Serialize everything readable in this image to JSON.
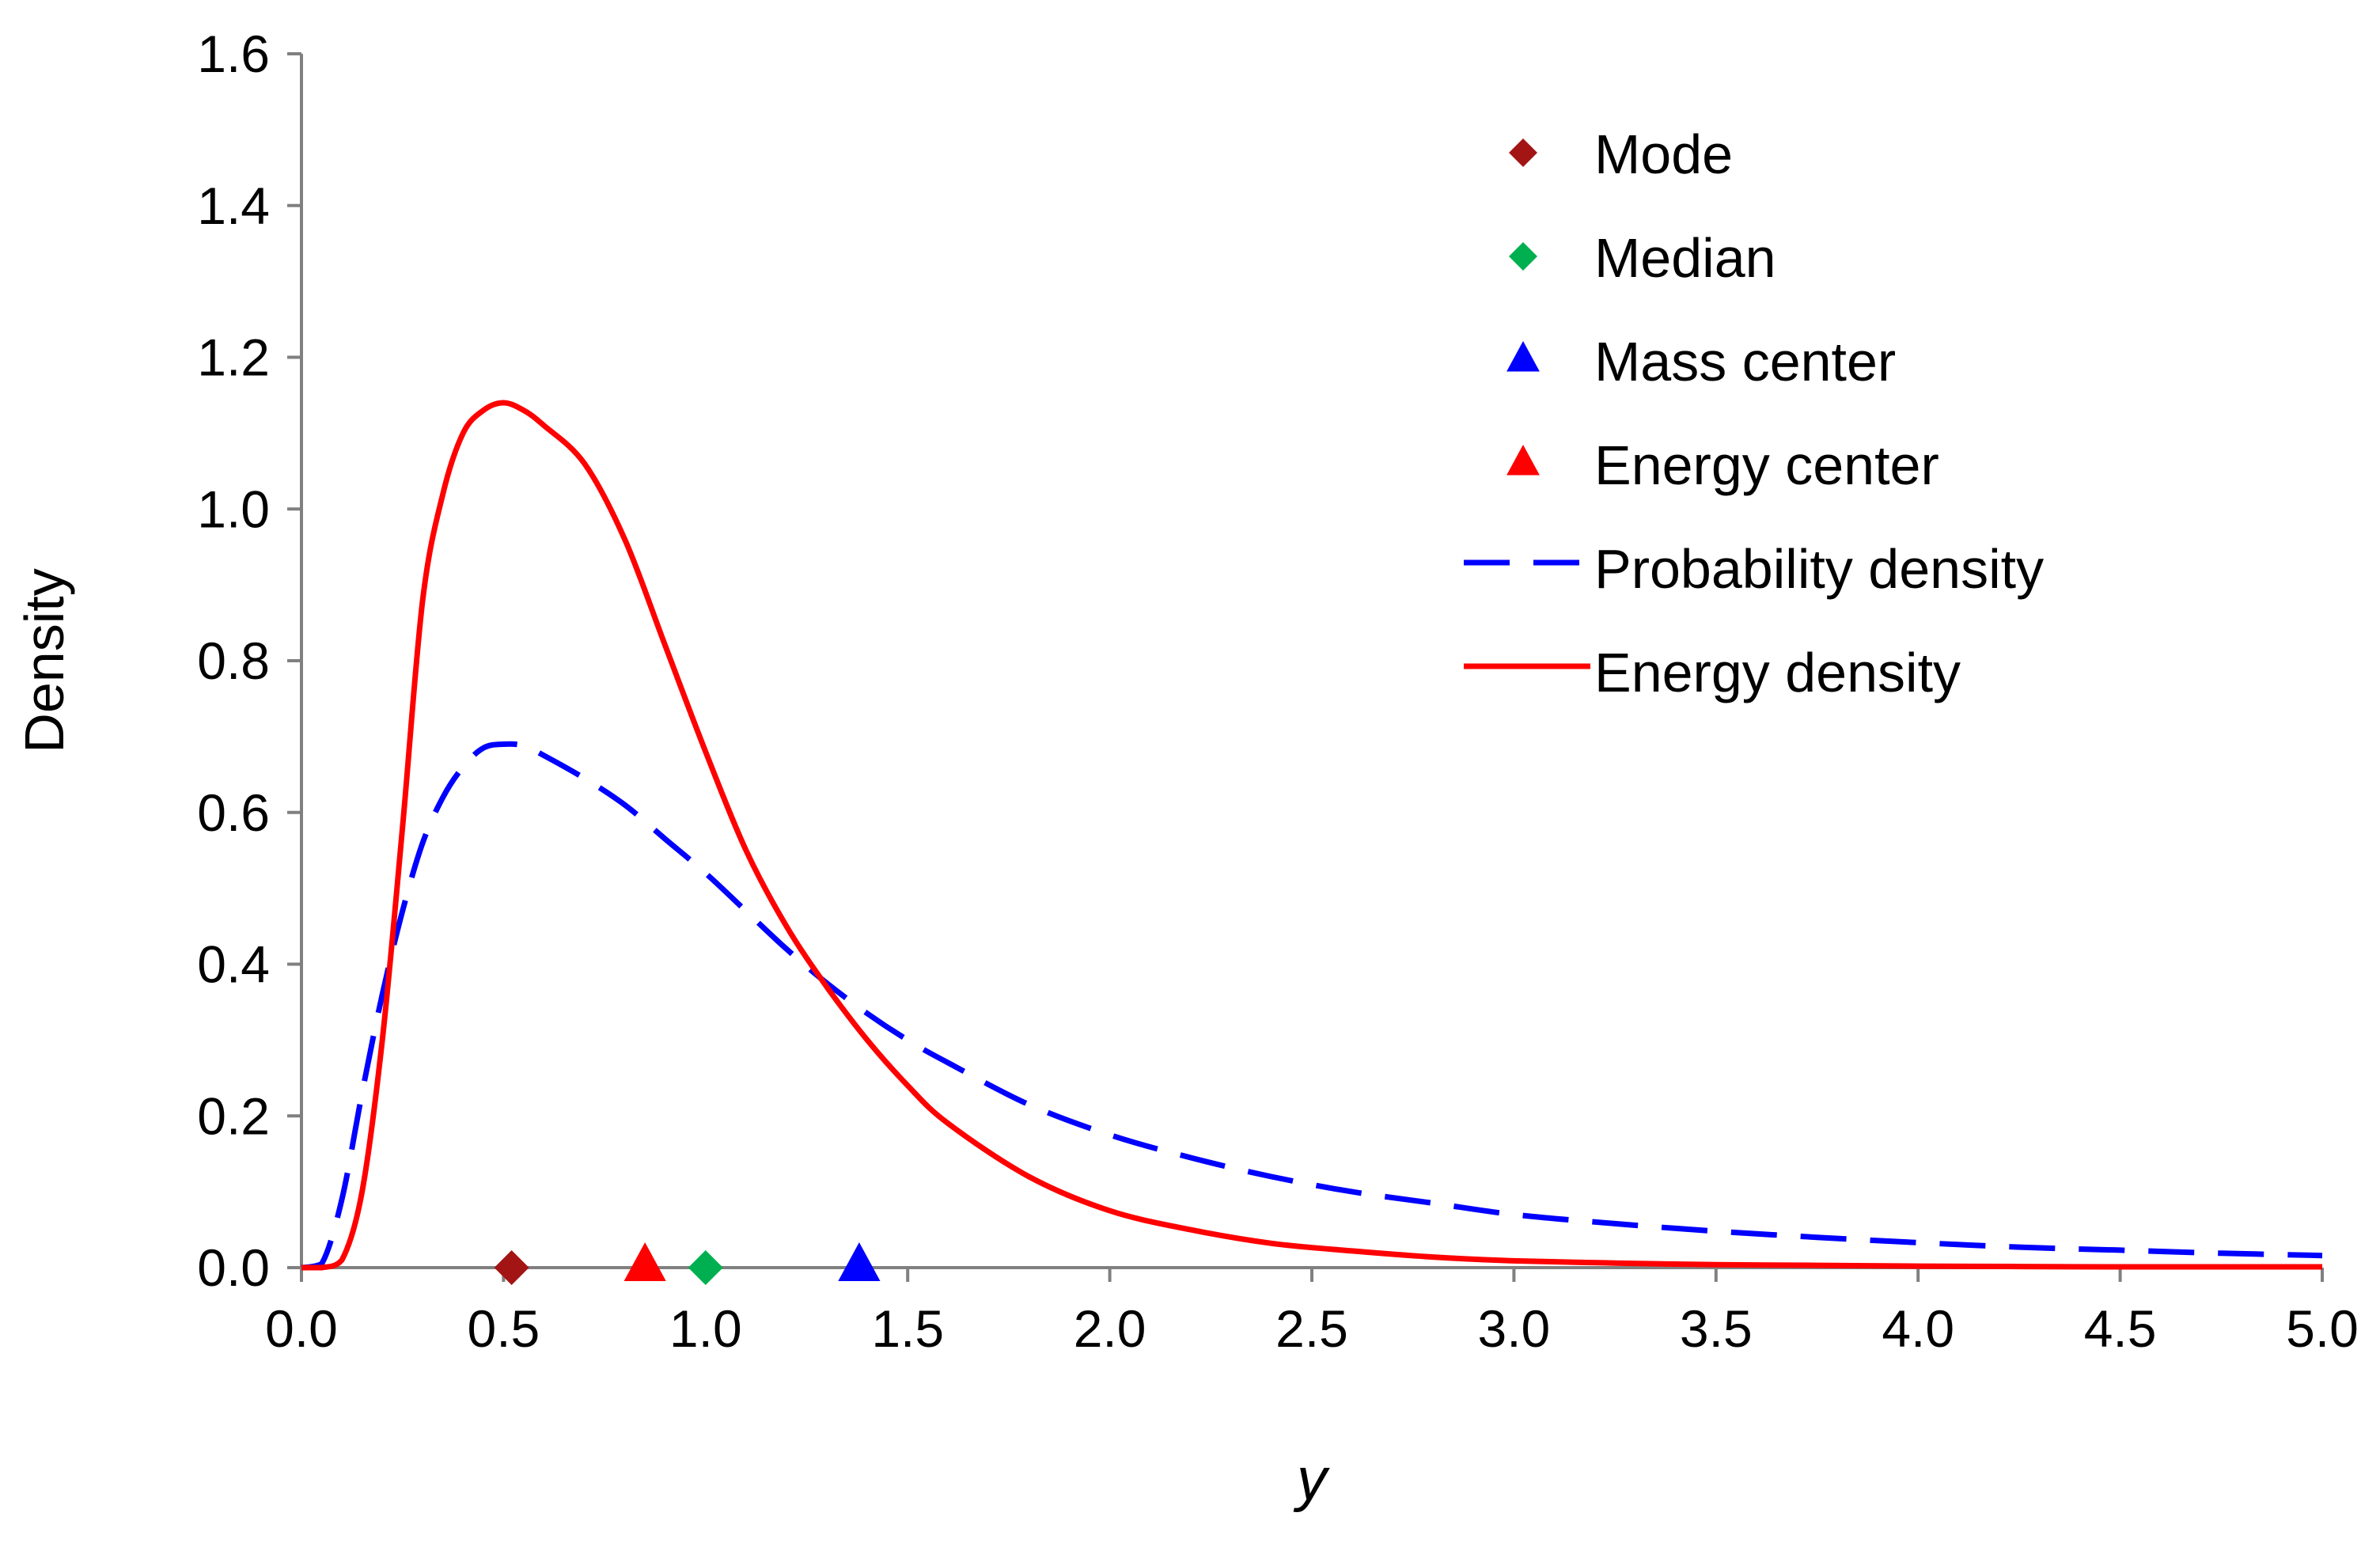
{
  "chart_data": {
    "type": "line",
    "title": "",
    "xlabel": "y",
    "ylabel": "Density",
    "xlim": [
      0,
      5
    ],
    "ylim": [
      0,
      1.6
    ],
    "grid": false,
    "legend_position": "top-right",
    "xticks": [
      "0.0",
      "0.5",
      "1.0",
      "1.5",
      "2.0",
      "2.5",
      "3.0",
      "3.5",
      "4.0",
      "4.5",
      "5.0"
    ],
    "yticks": [
      "0.0",
      "0.2",
      "0.4",
      "0.6",
      "0.8",
      "1.0",
      "1.2",
      "1.4",
      "1.6"
    ],
    "series": [
      {
        "name": "Probability density",
        "style": "dashed",
        "color": "#0000ff",
        "x": [
          0.0,
          0.05,
          0.1,
          0.15,
          0.2,
          0.25,
          0.3,
          0.35,
          0.4,
          0.45,
          0.5,
          0.55,
          0.6,
          0.7,
          0.8,
          0.9,
          1.0,
          1.1,
          1.2,
          1.3,
          1.4,
          1.5,
          1.6,
          1.8,
          2.0,
          2.2,
          2.4,
          2.6,
          2.8,
          3.0,
          3.25,
          3.5,
          3.75,
          4.0,
          4.25,
          4.5,
          4.75,
          5.0
        ],
        "y": [
          0.0,
          0.005,
          0.09,
          0.23,
          0.36,
          0.47,
          0.56,
          0.62,
          0.66,
          0.685,
          0.69,
          0.688,
          0.675,
          0.645,
          0.61,
          0.565,
          0.52,
          0.47,
          0.42,
          0.375,
          0.335,
          0.3,
          0.27,
          0.215,
          0.175,
          0.145,
          0.12,
          0.1,
          0.085,
          0.07,
          0.058,
          0.048,
          0.04,
          0.033,
          0.027,
          0.023,
          0.019,
          0.016
        ]
      },
      {
        "name": "Energy density",
        "style": "solid",
        "color": "#ff0000",
        "x": [
          0.0,
          0.05,
          0.1,
          0.15,
          0.2,
          0.25,
          0.3,
          0.35,
          0.4,
          0.45,
          0.5,
          0.55,
          0.6,
          0.7,
          0.8,
          0.9,
          1.0,
          1.1,
          1.2,
          1.3,
          1.4,
          1.5,
          1.6,
          1.8,
          2.0,
          2.2,
          2.4,
          2.6,
          2.8,
          3.0,
          3.25,
          3.5,
          3.75,
          4.0,
          4.25,
          4.5,
          4.75,
          5.0
        ],
        "y": [
          0.0,
          0.0,
          0.01,
          0.1,
          0.3,
          0.58,
          0.88,
          1.02,
          1.1,
          1.13,
          1.14,
          1.13,
          1.11,
          1.06,
          0.96,
          0.82,
          0.68,
          0.55,
          0.45,
          0.37,
          0.3,
          0.24,
          0.19,
          0.12,
          0.075,
          0.05,
          0.032,
          0.022,
          0.014,
          0.009,
          0.006,
          0.004,
          0.003,
          0.002,
          0.0015,
          0.001,
          0.001,
          0.001
        ]
      }
    ],
    "markers": [
      {
        "name": "Mode",
        "shape": "diamond",
        "color": "#a31515",
        "x": 0.52,
        "y": 0.0
      },
      {
        "name": "Median",
        "shape": "diamond",
        "color": "#00b050",
        "x": 1.0,
        "y": 0.0
      },
      {
        "name": "Mass center",
        "shape": "triangle",
        "color": "#0000ff",
        "x": 1.38,
        "y": 0.0
      },
      {
        "name": "Energy center",
        "shape": "triangle",
        "color": "#ff0000",
        "x": 0.85,
        "y": 0.0
      }
    ],
    "legend": [
      {
        "label": "Mode",
        "kind": "diamond",
        "color": "#a31515"
      },
      {
        "label": "Median",
        "kind": "diamond",
        "color": "#00b050"
      },
      {
        "label": "Mass center",
        "kind": "triangle",
        "color": "#0000ff"
      },
      {
        "label": "Energy center",
        "kind": "triangle",
        "color": "#ff0000"
      },
      {
        "label": "Probability density",
        "kind": "dashed-line",
        "color": "#0000ff"
      },
      {
        "label": "Energy density",
        "kind": "solid-line",
        "color": "#ff0000"
      }
    ]
  }
}
